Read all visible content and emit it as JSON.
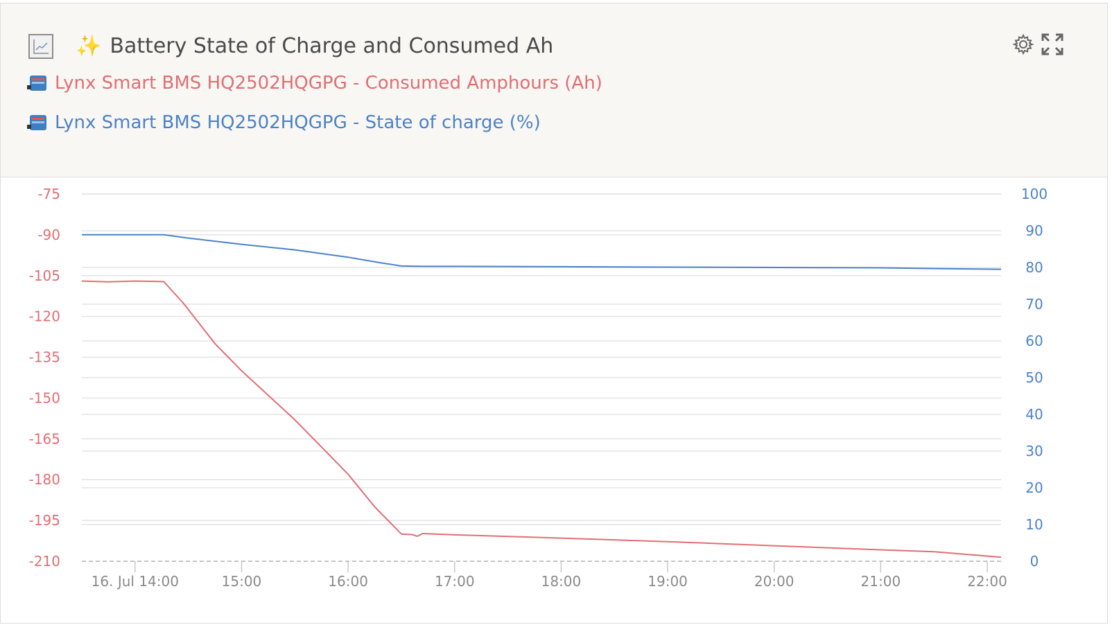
{
  "header": {
    "title": "Battery State of Charge and Consumed Ah",
    "title_emoji": "✨",
    "chart_icon": "line-chart-icon",
    "settings_icon": "gear-icon",
    "expand_icon": "expand-icon"
  },
  "legend": [
    {
      "device_icon": "lynx-bms-device-icon",
      "label": "Lynx Smart BMS HQ2502HQGPG - Consumed Amphours (Ah)",
      "color": "#e26d73"
    },
    {
      "device_icon": "lynx-bms-device-icon",
      "label": "Lynx Smart BMS HQ2502HQGPG - State of charge (%)",
      "color": "#4b82c8"
    }
  ],
  "chart_data": {
    "type": "line",
    "x_tick_labels": [
      "16. Jul 14:00",
      "15:00",
      "16:00",
      "17:00",
      "18:00",
      "19:00",
      "20:00",
      "21:00",
      "22:00"
    ],
    "x_ticks_hours": [
      14,
      15,
      16,
      17,
      18,
      19,
      20,
      21,
      22
    ],
    "xlim_hours": [
      13.5,
      22.13
    ],
    "y_left": {
      "ticks": [
        -75,
        -90,
        -105,
        -120,
        -135,
        -150,
        -165,
        -180,
        -195,
        -210
      ],
      "ylim": [
        -210,
        -75
      ],
      "color": "#e26d73"
    },
    "y_right": {
      "ticks": [
        100,
        90,
        80,
        70,
        60,
        50,
        40,
        30,
        20,
        10,
        0
      ],
      "ylim": [
        0,
        100
      ],
      "color": "#4b82c8"
    },
    "grid": true,
    "series": [
      {
        "name": "Lynx Smart BMS HQ2502HQGPG - Consumed Amphours (Ah)",
        "axis": "left",
        "color": "#e26d73",
        "x_hours": [
          13.5,
          13.75,
          14.0,
          14.27,
          14.45,
          14.75,
          15.0,
          15.25,
          15.5,
          15.75,
          16.0,
          16.25,
          16.5,
          16.6,
          16.65,
          16.7,
          17.0,
          18.0,
          19.0,
          20.0,
          21.0,
          21.5,
          22.13
        ],
        "values": [
          -107,
          -107.3,
          -107,
          -107.2,
          -115,
          -130,
          -140,
          -149,
          -158,
          -168,
          -178,
          -190,
          -200,
          -200.2,
          -200.8,
          -199.8,
          -200.3,
          -201.5,
          -202.8,
          -204.3,
          -205.8,
          -206.5,
          -208.5
        ]
      },
      {
        "name": "Lynx Smart BMS HQ2502HQGPG - State of charge (%)",
        "axis": "right",
        "color": "#4b82c8",
        "x_hours": [
          13.5,
          14.0,
          14.27,
          14.5,
          15.0,
          15.5,
          16.0,
          16.3,
          16.5,
          16.7,
          17.0,
          18.0,
          19.0,
          20.0,
          21.0,
          21.5,
          22.13
        ],
        "values": [
          88.9,
          88.9,
          88.9,
          88.0,
          86.3,
          84.8,
          82.8,
          81.3,
          80.4,
          80.3,
          80.3,
          80.2,
          80.1,
          80.0,
          79.9,
          79.7,
          79.5
        ]
      }
    ]
  }
}
